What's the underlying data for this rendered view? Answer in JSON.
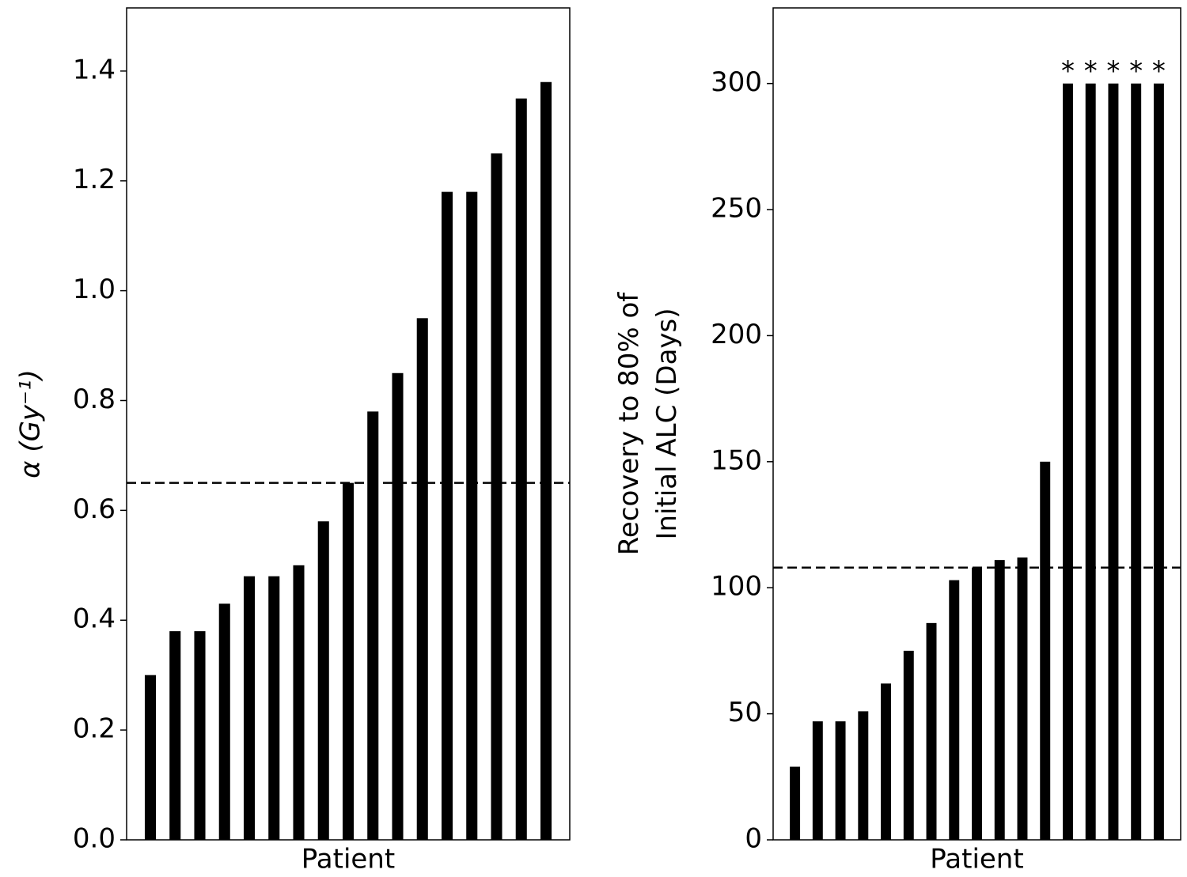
{
  "chart_data": [
    {
      "type": "bar",
      "ylabel": "α (Gy⁻¹)",
      "xlabel": "Patient",
      "values": [
        0.3,
        0.38,
        0.38,
        0.43,
        0.48,
        0.48,
        0.5,
        0.58,
        0.65,
        0.78,
        0.85,
        0.95,
        1.18,
        1.18,
        1.25,
        1.35,
        1.38
      ],
      "color": "#000000",
      "reference_line": 0.65,
      "ylim": [
        0,
        1.515
      ],
      "yticks": [
        {
          "value": 0,
          "label": "0.0"
        },
        0.2,
        0.4,
        0.6,
        0.8,
        {
          "value": 1,
          "label": "1.0"
        },
        1.2,
        1.4
      ]
    },
    {
      "type": "bar",
      "ylabel": [
        "Recovery to 80% of",
        "Initial ALC (Days)"
      ],
      "xlabel": "Patient",
      "values": [
        29,
        47,
        47,
        51,
        62,
        75,
        86,
        103,
        108,
        111,
        112,
        150,
        300,
        300,
        300,
        300,
        300
      ],
      "color": "#000000",
      "reference_line": 108,
      "ylim": [
        0,
        330
      ],
      "yticks": [
        0,
        50,
        100,
        150,
        200,
        250,
        300
      ],
      "annotations": [
        {
          "text": "*",
          "bar": 12
        },
        {
          "text": "*",
          "bar": 13
        },
        {
          "text": "*",
          "bar": 14
        },
        {
          "text": "*",
          "bar": 15
        },
        {
          "text": "*",
          "bar": 16
        }
      ]
    }
  ]
}
